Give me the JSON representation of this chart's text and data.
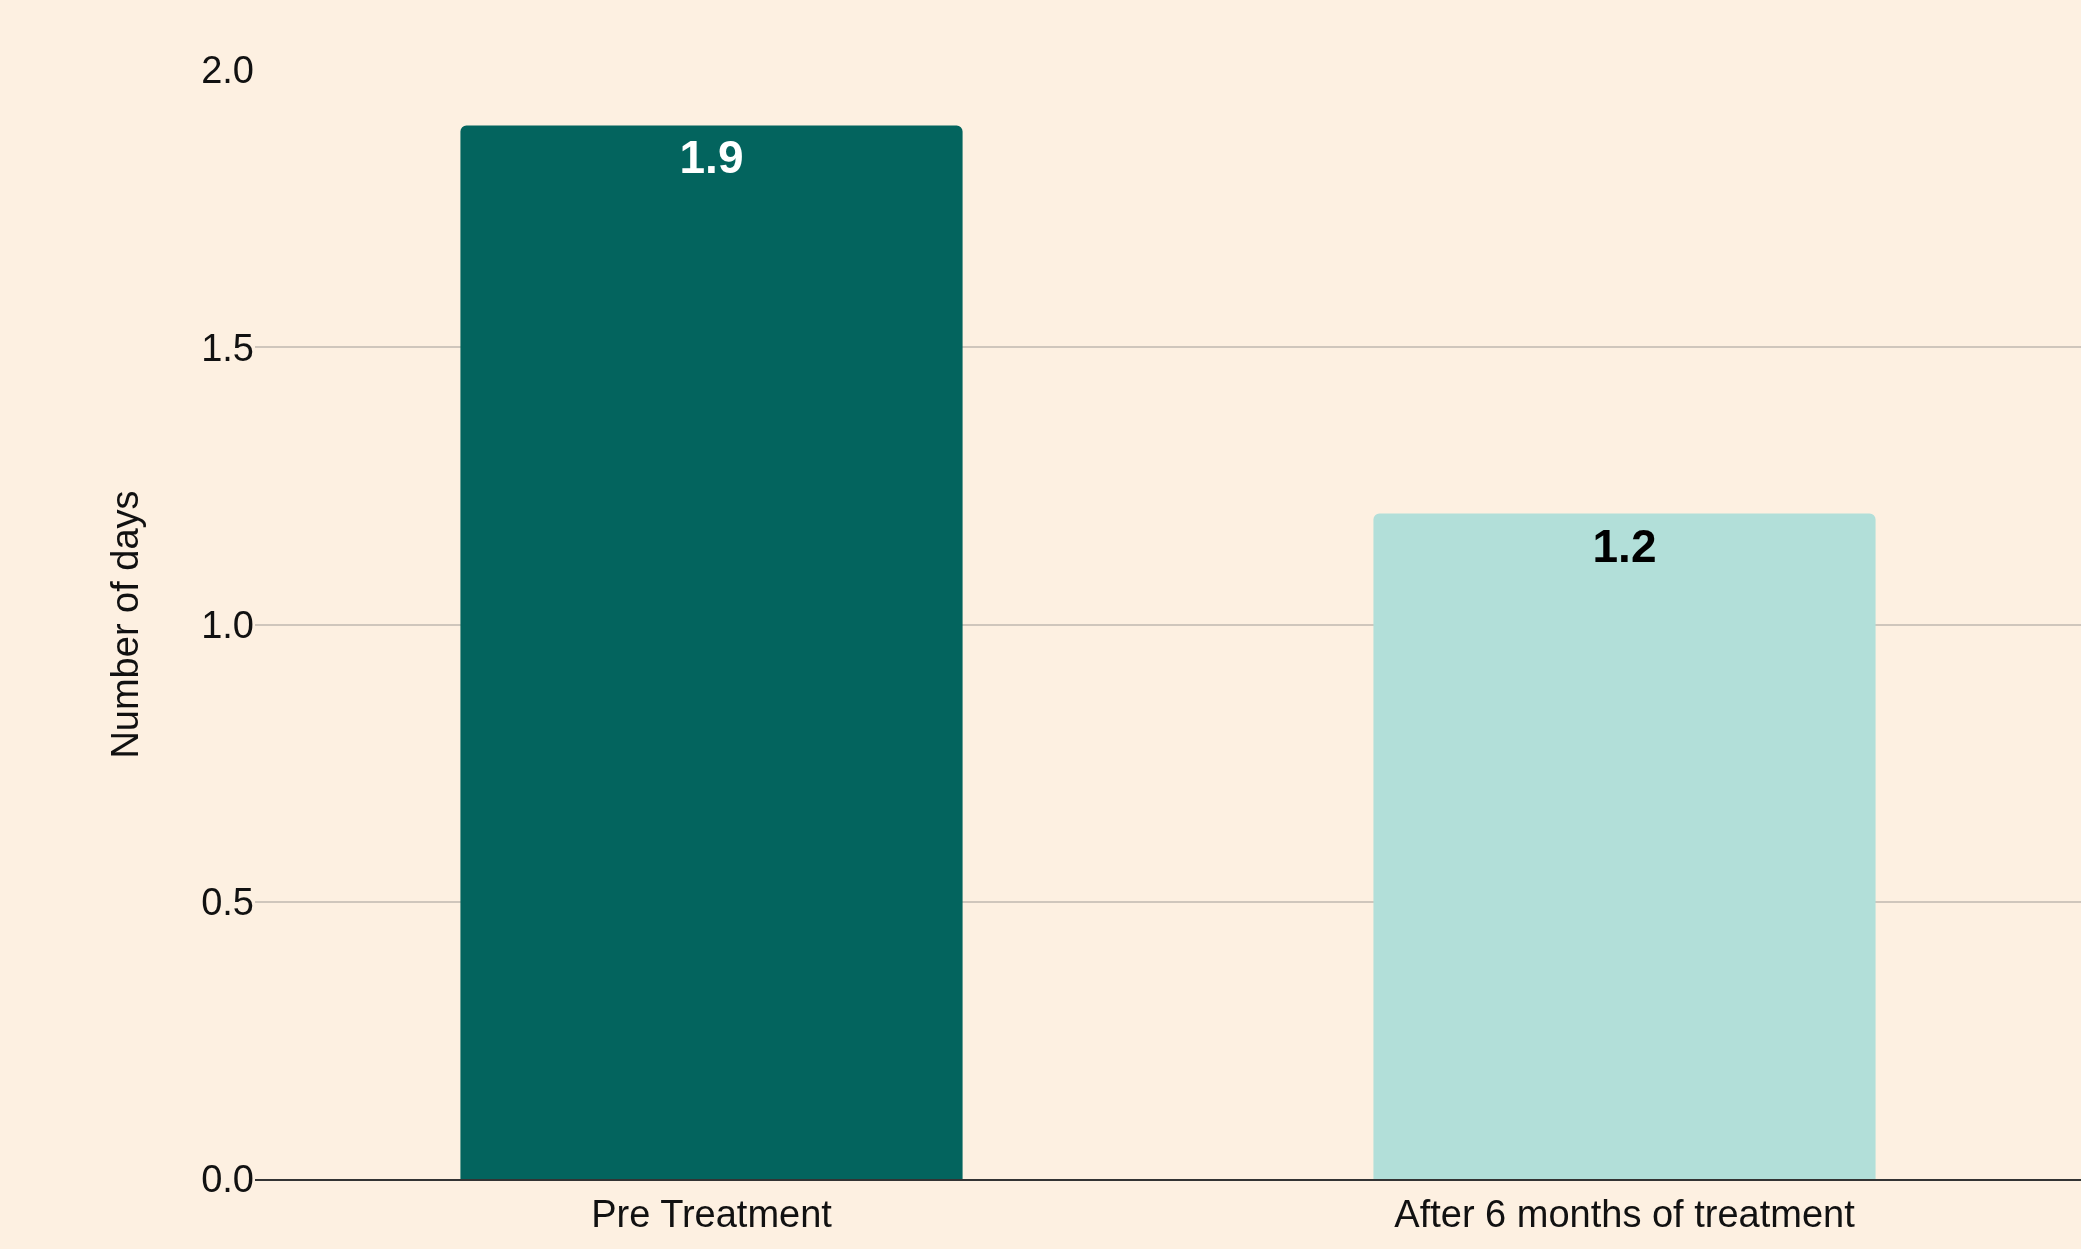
{
  "chart_data": {
    "type": "bar",
    "ylabel": "Number of days",
    "categories": [
      "Pre Treatment",
      "After 6 months of treatment"
    ],
    "values": [
      1.9,
      1.2
    ],
    "colors": [
      "#03645e",
      "#b2dfd9"
    ],
    "ylim": [
      0,
      2
    ],
    "yticks": [
      {
        "value": 0,
        "label": "0.0"
      },
      {
        "value": 0.5,
        "label": "0.5"
      },
      {
        "value": 1,
        "label": "1.0"
      },
      {
        "value": 1.5,
        "label": "1.5"
      },
      {
        "value": 2,
        "label": "2.0"
      }
    ],
    "grid": "y",
    "data_labels": true
  }
}
